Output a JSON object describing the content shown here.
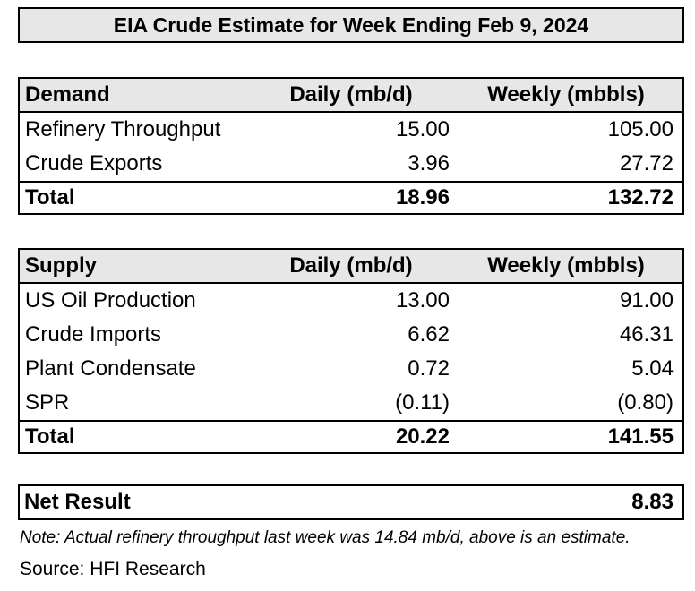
{
  "title": "EIA Crude Estimate for Week Ending Feb 9, 2024",
  "demand": {
    "headers": [
      "Demand",
      "Daily (mb/d)",
      "Weekly (mbbls)"
    ],
    "rows": [
      [
        "Refinery Throughput",
        "15.00",
        "105.00"
      ],
      [
        "Crude Exports",
        "3.96",
        "27.72"
      ]
    ],
    "total": [
      "Total",
      "18.96",
      "132.72"
    ]
  },
  "supply": {
    "headers": [
      "Supply",
      "Daily (mb/d)",
      "Weekly (mbbls)"
    ],
    "rows": [
      [
        "US Oil Production",
        "13.00",
        "91.00"
      ],
      [
        "Crude Imports",
        "6.62",
        "46.31"
      ],
      [
        "Plant Condensate",
        "0.72",
        "5.04"
      ],
      [
        "SPR",
        "(0.11)",
        "(0.80)"
      ]
    ],
    "total": [
      "Total",
      "20.22",
      "141.55"
    ]
  },
  "net_result": {
    "label": "Net Result",
    "value": "8.83"
  },
  "note": "Note: Actual refinery throughput last week was 14.84 mb/d, above is an estimate.",
  "source": "Source: HFI Research"
}
